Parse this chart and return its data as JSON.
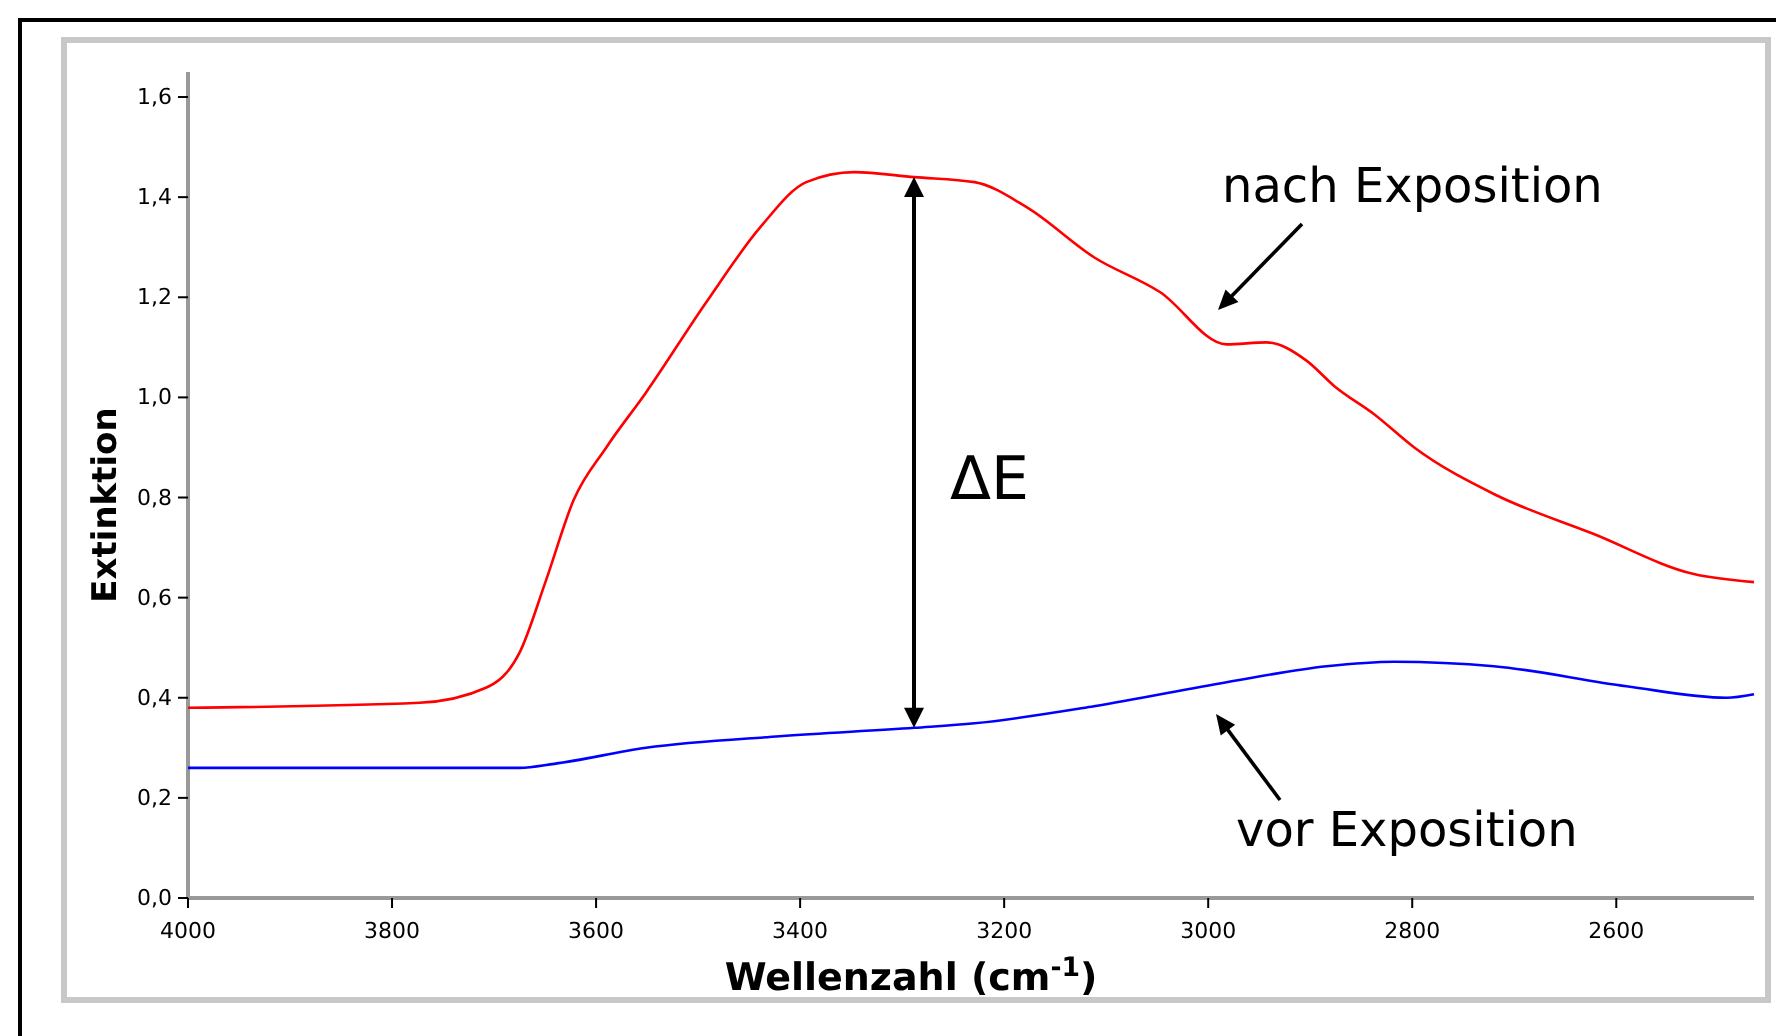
{
  "chart_data": {
    "type": "line",
    "xlabel": "Wellenzahl (cm$^{-1}$)",
    "ylabel": "Extinktion",
    "xlim": [
      4000,
      2465
    ],
    "ylim": [
      0,
      1.65
    ],
    "xticks": [
      4000,
      3800,
      3600,
      3400,
      3200,
      3000,
      2800,
      2600
    ],
    "yticks": [
      {
        "value": 0,
        "label": "0,0"
      },
      {
        "value": 0.2,
        "label": "0,2"
      },
      {
        "value": 0.4,
        "label": "0,4"
      },
      {
        "value": 0.6,
        "label": "0,6"
      },
      {
        "value": 0.8,
        "label": "0,8"
      },
      {
        "value": 1.0,
        "label": "1,0"
      },
      {
        "value": 1.2,
        "label": "1,2"
      },
      {
        "value": 1.4,
        "label": "1,4"
      },
      {
        "value": 1.6,
        "label": "1,6"
      }
    ],
    "grid": false,
    "marker": "none",
    "line_style": "solid",
    "series": [
      {
        "color": "#ff0000",
        "x": [
          4000,
          3773,
          3708,
          3675,
          3649,
          3622,
          3590,
          3551,
          3492,
          3439,
          3394,
          3347,
          3288,
          3229,
          3178,
          3112,
          3047,
          2982,
          2943,
          2904,
          2876,
          2837,
          2798,
          2720,
          2622,
          2524,
          2465
        ],
        "values": [
          0.38,
          0.39,
          0.42,
          0.49,
          0.635,
          0.795,
          0.9,
          1.01,
          1.19,
          1.34,
          1.43,
          1.45,
          1.44,
          1.43,
          1.38,
          1.28,
          1.21,
          1.106,
          1.11,
          1.074,
          1.022,
          0.966,
          0.9,
          0.807,
          0.727,
          0.647,
          0.631
        ]
      },
      {
        "color": "#0000ff",
        "x": [
          4000,
          3675,
          3641,
          3551,
          3420,
          3288,
          3229,
          3112,
          2982,
          2884,
          2818,
          2720,
          2590,
          2492,
          2465
        ],
        "values": [
          0.26,
          0.26,
          0.268,
          0.3,
          0.323,
          0.34,
          0.349,
          0.383,
          0.431,
          0.463,
          0.472,
          0.463,
          0.423,
          0.4,
          0.407
        ]
      }
    ],
    "annotations": [
      "ΔE",
      "nach Exposition",
      "vor Exposition"
    ]
  }
}
